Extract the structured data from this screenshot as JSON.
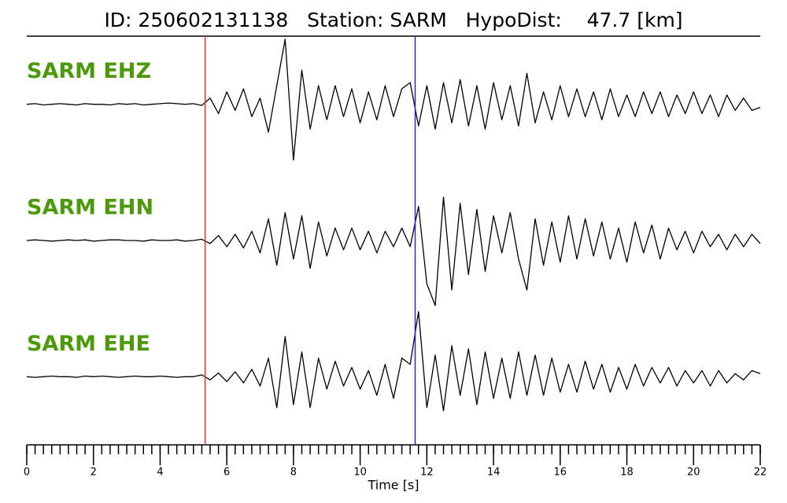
{
  "chart_data": {
    "type": "seismogram",
    "title": "ID: 250602131138   Station: SARM   HypoDist:    47.7 [km]",
    "x_label": "Time [s]",
    "xlim": [
      0,
      22
    ],
    "xticks": [
      0,
      2,
      4,
      6,
      8,
      10,
      12,
      14,
      16,
      18,
      20,
      22
    ],
    "ylim": [
      -1.1,
      1.1
    ],
    "x": [
      0,
      0.25,
      0.5,
      0.75,
      1,
      1.25,
      1.5,
      1.75,
      2,
      2.25,
      2.5,
      2.75,
      3,
      3.25,
      3.5,
      3.75,
      4,
      4.25,
      4.5,
      4.75,
      5,
      5.25,
      5.5,
      5.75,
      6,
      6.25,
      6.5,
      6.75,
      7,
      7.25,
      7.5,
      7.75,
      8,
      8.25,
      8.5,
      8.75,
      9,
      9.25,
      9.5,
      9.75,
      10,
      10.25,
      10.5,
      10.75,
      11,
      11.25,
      11.5,
      11.75,
      12,
      12.25,
      12.5,
      12.75,
      13,
      13.25,
      13.5,
      13.75,
      14,
      14.25,
      14.5,
      14.75,
      15,
      15.25,
      15.5,
      15.75,
      16,
      16.25,
      16.5,
      16.75,
      17,
      17.25,
      17.5,
      17.75,
      18,
      18.25,
      18.5,
      18.75,
      19,
      19.25,
      19.5,
      19.75,
      20,
      20.25,
      20.5,
      20.75,
      21,
      21.25,
      21.5,
      21.75,
      22
    ],
    "series": [
      {
        "name": "SARM EHZ",
        "color": "#000000",
        "label_color": "#4c9a0a",
        "values": [
          0,
          0.01,
          -0.01,
          0,
          0.01,
          0,
          -0.01,
          0.01,
          0,
          0,
          -0.01,
          0.01,
          0,
          0.01,
          -0.01,
          0,
          0.01,
          0.02,
          0.01,
          0,
          0.01,
          -0.02,
          0.1,
          -0.15,
          0.2,
          -0.1,
          0.25,
          -0.2,
          0.1,
          -0.45,
          0.3,
          1.05,
          -0.9,
          0.55,
          -0.4,
          0.3,
          -0.25,
          0.3,
          -0.2,
          0.25,
          -0.3,
          0.2,
          -0.25,
          0.3,
          -0.2,
          0.25,
          0.35,
          -0.35,
          0.3,
          -0.4,
          0.35,
          -0.3,
          0.4,
          -0.35,
          0.3,
          -0.4,
          0.35,
          -0.25,
          0.3,
          -0.35,
          0.5,
          -0.3,
          0.2,
          -0.25,
          0.3,
          -0.2,
          0.25,
          -0.2,
          0.2,
          -0.25,
          0.25,
          -0.2,
          0.15,
          -0.2,
          0.2,
          -0.15,
          0.2,
          -0.2,
          0.15,
          -0.15,
          0.2,
          -0.15,
          0.15,
          -0.2,
          0.15,
          -0.1,
          0.1,
          -0.1,
          -0.05
        ]
      },
      {
        "name": "SARM EHN",
        "color": "#000000",
        "label_color": "#4c9a0a",
        "values": [
          0,
          0.01,
          0,
          -0.01,
          0,
          0.01,
          0,
          0.01,
          -0.01,
          0,
          0.01,
          0.01,
          0,
          0,
          -0.01,
          0.01,
          0,
          0,
          0.01,
          -0.01,
          0,
          0.02,
          -0.05,
          0.08,
          -0.1,
          0.1,
          -0.12,
          0.15,
          -0.2,
          0.35,
          -0.4,
          0.45,
          -0.3,
          0.4,
          -0.45,
          0.3,
          -0.25,
          0.2,
          -0.15,
          0.2,
          -0.15,
          0.15,
          -0.2,
          0.15,
          -0.1,
          0.2,
          -0.1,
          0.55,
          -0.7,
          -1.05,
          0.7,
          -0.8,
          0.6,
          -0.55,
          0.5,
          -0.5,
          0.4,
          -0.2,
          0.45,
          -0.3,
          -0.8,
          0.35,
          -0.4,
          0.3,
          -0.35,
          0.4,
          -0.3,
          0.35,
          -0.25,
          0.3,
          -0.3,
          0.2,
          -0.35,
          0.3,
          -0.2,
          0.25,
          -0.3,
          0.2,
          -0.15,
          0.15,
          -0.2,
          0.15,
          -0.1,
          0.1,
          -0.15,
          0.1,
          -0.1,
          0.1,
          -0.05
        ]
      },
      {
        "name": "SARM EHE",
        "color": "#000000",
        "label_color": "#4c9a0a",
        "values": [
          0,
          -0.01,
          0,
          0.01,
          0,
          0,
          -0.01,
          0.01,
          0,
          0.01,
          0,
          -0.01,
          0,
          0.01,
          0,
          0,
          0.01,
          0,
          -0.01,
          0,
          0,
          0.03,
          -0.05,
          0.06,
          -0.08,
          0.08,
          -0.1,
          0.12,
          -0.15,
          0.3,
          -0.5,
          0.65,
          -0.45,
          0.4,
          -0.5,
          0.3,
          -0.2,
          0.25,
          -0.15,
          0.15,
          -0.2,
          0.1,
          -0.3,
          0.2,
          -0.35,
          0.3,
          0.2,
          1.05,
          -0.5,
          0.35,
          -0.55,
          0.5,
          -0.3,
          0.45,
          -0.45,
          0.4,
          -0.35,
          0.3,
          -0.35,
          0.4,
          -0.3,
          0.35,
          -0.3,
          0.3,
          -0.25,
          0.2,
          -0.25,
          0.25,
          -0.2,
          0.2,
          -0.25,
          0.15,
          -0.2,
          0.2,
          -0.15,
          0.15,
          -0.1,
          0.15,
          -0.15,
          0.1,
          -0.1,
          0.1,
          -0.15,
          0.1,
          -0.1,
          0.05,
          -0.05,
          0.1,
          0.05
        ]
      }
    ],
    "picks": [
      {
        "x": 5.35,
        "color": "#e8312a"
      },
      {
        "x": 11.65,
        "color": "#2b2bc8"
      }
    ]
  }
}
